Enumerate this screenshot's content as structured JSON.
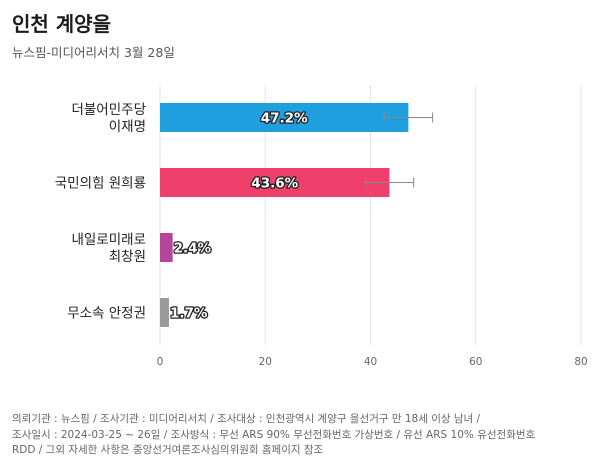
{
  "header": {
    "title": "인천 계양을",
    "subtitle": "뉴스핌-미디어리서치 3월 28일"
  },
  "chart_data": {
    "type": "bar",
    "orientation": "horizontal",
    "categories": [
      [
        "더불어민주당",
        "이재명"
      ],
      [
        "국민의힘 원희룡"
      ],
      [
        "내일로미래로",
        "최창원"
      ],
      [
        "무소속 안정권"
      ]
    ],
    "values": [
      47.2,
      43.6,
      2.4,
      1.7
    ],
    "value_labels": [
      "47.2%",
      "43.6%",
      "2.4%",
      "1.7%"
    ],
    "error_bars": [
      [
        42.6,
        51.8
      ],
      [
        39.0,
        48.2
      ],
      null,
      null
    ],
    "colors": [
      "#1f9fe0",
      "#ef3f6b",
      "#b5459a",
      "#9a9a9a"
    ],
    "xlim": [
      0,
      80
    ],
    "xticks": [
      "0",
      "20",
      "40",
      "60",
      "80"
    ],
    "grid": true
  },
  "footnote": {
    "lines": [
      "의뢰기관 : 뉴스핌 / 조사기관 : 미디어리서치 / 조사대상 : 인천광역시 계양구 을선거구 만 18세 이상 남녀 /",
      "조사일시 : 2024-03-25 ~ 26일 / 조사방식 : 무선 ARS 90% 무선전화번호 가상번호 / 유선 ARS 10% 유선전화번호",
      "RDD / 그외 자세한 사항은 중앙선거여론조사심의위원회 홈페이지 참조"
    ]
  }
}
